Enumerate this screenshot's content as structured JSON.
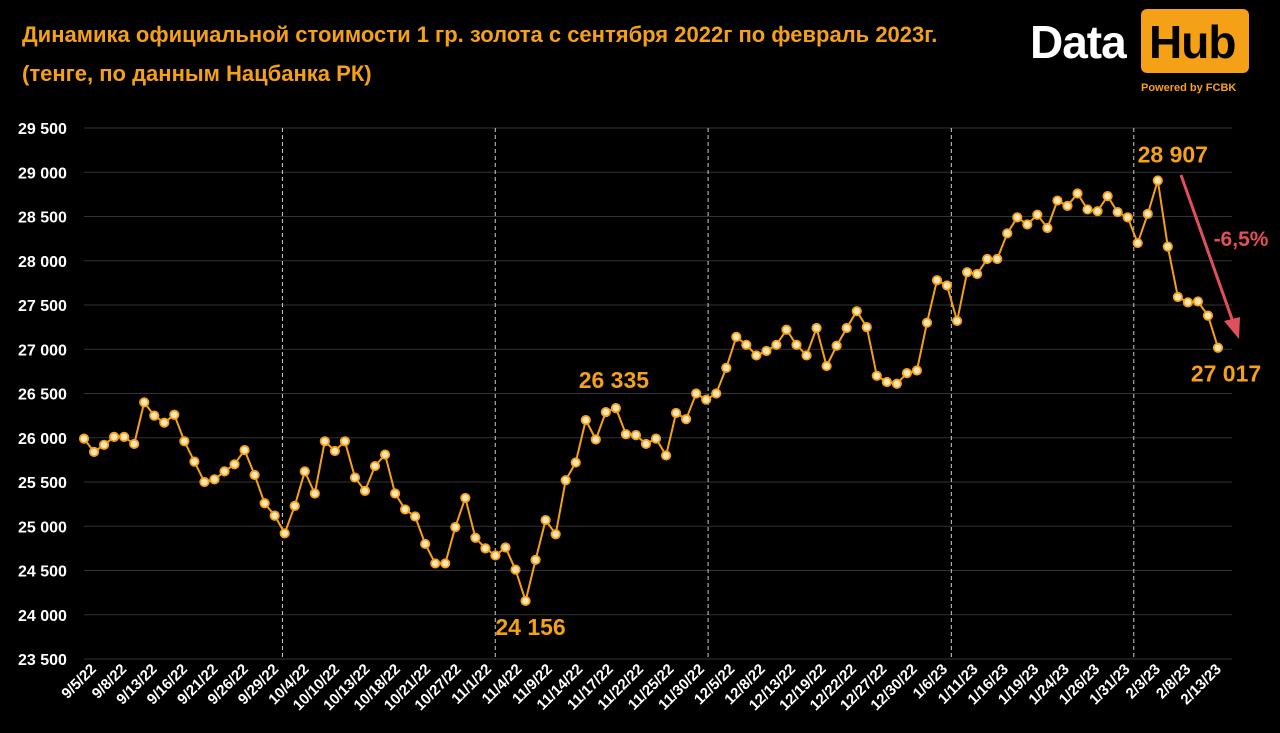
{
  "header": {
    "title_line1": "Динамика официальной стоимости 1 гр. золота с сентября 2022г по февраль 2023г.",
    "title_line2": "(тенге, по данным Нацбанка РК)"
  },
  "logo": {
    "word1": "Data",
    "word2": "Hub",
    "powered": "Powered by FCBK"
  },
  "colors": {
    "background": "#000000",
    "accent": "#f5a117",
    "marker_fill": "#fde7b8",
    "arrow": "#e0505a",
    "grid": "#333333",
    "vline": "#cccccc"
  },
  "chart_data": {
    "type": "line",
    "title": "Динамика официальной стоимости 1 гр. золота с сентября 2022г по февраль 2023г.",
    "subtitle": "(тенге, по данным Нацбанка РК)",
    "ylim": [
      23500,
      29500
    ],
    "yticks": [
      23500,
      24000,
      24500,
      25000,
      25500,
      26000,
      26500,
      27000,
      27500,
      28000,
      28500,
      29000,
      29500
    ],
    "ytick_labels": [
      "23 500",
      "24 000",
      "24 500",
      "25 000",
      "25 500",
      "26 000",
      "26 500",
      "27 000",
      "27 500",
      "28 000",
      "28 500",
      "29 000",
      "29 500"
    ],
    "grid": true,
    "xtick_labels": [
      "9/5/22",
      "9/8/22",
      "9/13/22",
      "9/16/22",
      "9/21/22",
      "9/26/22",
      "9/29/22",
      "10/4/22",
      "10/10/22",
      "10/13/22",
      "10/18/22",
      "10/21/22",
      "10/27/22",
      "11/1/22",
      "11/4/22",
      "11/9/22",
      "11/14/22",
      "11/17/22",
      "11/22/22",
      "11/25/22",
      "11/30/22",
      "12/5/22",
      "12/8/22",
      "12/13/22",
      "12/19/22",
      "12/22/22",
      "12/27/22",
      "12/30/22",
      "1/6/23",
      "1/11/23",
      "1/16/23",
      "1/19/23",
      "1/24/23",
      "1/26/23",
      "1/31/23",
      "2/3/23",
      "2/8/23",
      "2/13/23"
    ],
    "month_separator_labels": [
      "9/29/22",
      "11/1/22",
      "11/30/22",
      "1/6/23",
      "1/31/23"
    ],
    "series": [
      {
        "values": [
          25990,
          25840,
          25920,
          26010,
          26010,
          25930,
          26400,
          26250,
          26170,
          26260,
          25960,
          25730,
          25500,
          25530,
          25620,
          25700,
          25860,
          25580,
          25260,
          25120,
          24920,
          25230,
          25620,
          25370,
          25960,
          25850,
          25960,
          25550,
          25400,
          25680,
          25810,
          25370,
          25190,
          25110,
          24800,
          24580,
          24580,
          24990,
          25320,
          24870,
          24750,
          24670,
          24760,
          24510,
          24156,
          24620,
          25070,
          24910,
          25520,
          25720,
          26200,
          25980,
          26290,
          26335,
          26040,
          26030,
          25930,
          25990,
          25800,
          26280,
          26210,
          26500,
          26430,
          26500,
          26790,
          27140,
          27050,
          26930,
          26980,
          27050,
          27220,
          27050,
          26930,
          27240,
          26810,
          27040,
          27240,
          27430,
          27250,
          26700,
          26630,
          26610,
          26730,
          26760,
          27300,
          27780,
          27720,
          27320,
          27870,
          27850,
          28020,
          28020,
          28310,
          28490,
          28410,
          28520,
          28370,
          28680,
          28620,
          28760,
          28580,
          28560,
          28730,
          28550,
          28490,
          28200,
          28530,
          28907,
          28160,
          27590,
          27530,
          27540,
          27380,
          27017
        ]
      }
    ],
    "annotations": [
      {
        "text": "26 335",
        "value": 26335
      },
      {
        "text": "24 156",
        "value": 24156
      },
      {
        "text": "28 907",
        "value": 28907
      },
      {
        "text": "27 017",
        "value": 27017
      },
      {
        "text": "-6,5%"
      }
    ]
  }
}
